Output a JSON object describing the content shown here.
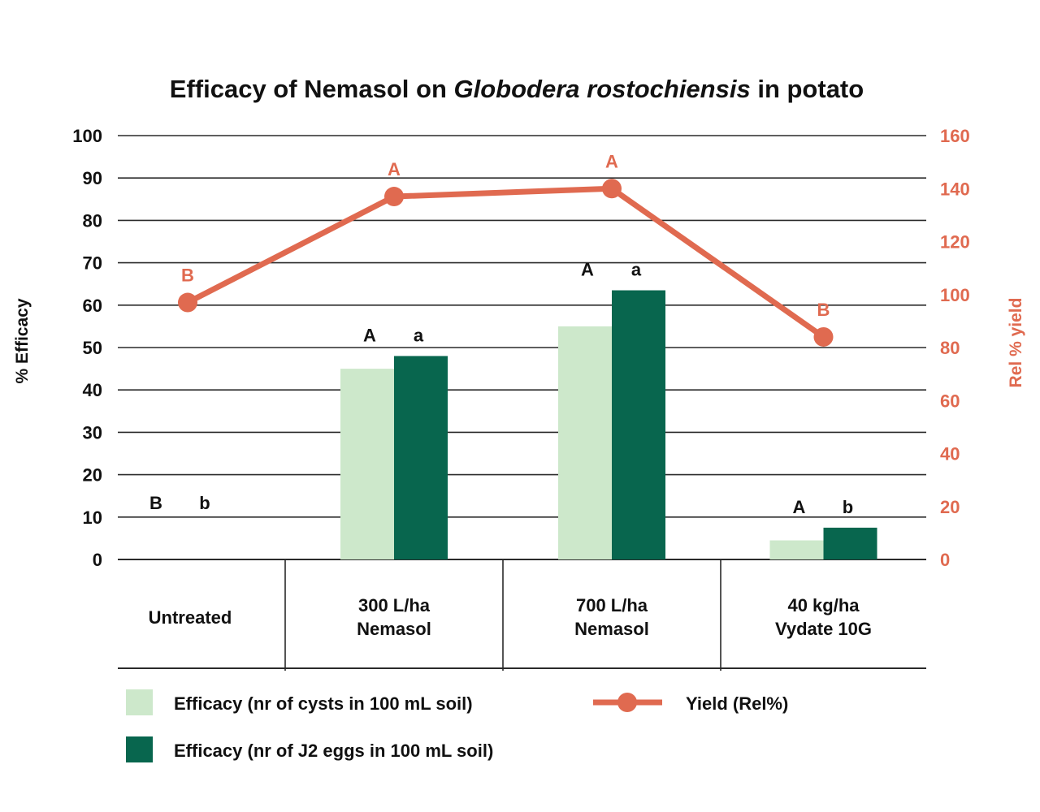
{
  "chart_data": {
    "type": "bar+line",
    "title_parts": [
      {
        "text": "Efficacy of Nemasol on ",
        "italic": false
      },
      {
        "text": "Globodera rostochiensis",
        "italic": true
      },
      {
        "text": " in potato",
        "italic": false
      }
    ],
    "title": "Efficacy of Nemasol on Globodera rostochiensis in potato",
    "ylabel": "% Efficacy",
    "y2label": "Rel % yield",
    "ylim": [
      0,
      100
    ],
    "yticks": [
      0,
      10,
      20,
      30,
      40,
      50,
      60,
      70,
      80,
      90,
      100
    ],
    "y2lim": [
      0,
      160
    ],
    "y2ticks": [
      0,
      20,
      40,
      60,
      80,
      100,
      120,
      140,
      160
    ],
    "grid": true,
    "categories": [
      [
        "Untreated"
      ],
      [
        "300 L/ha",
        "Nemasol"
      ],
      [
        "700 L/ha",
        "Nemasol"
      ],
      [
        "40 kg/ha",
        "Vydate 10G"
      ]
    ],
    "series": [
      {
        "name": "Efficacy (nr of cysts in 100 mL soil)",
        "type": "bar",
        "axis": "left",
        "color": "#CDE8CB",
        "values": [
          0,
          45,
          55,
          4.5
        ],
        "significance": [
          "B",
          "A",
          "A",
          "A"
        ]
      },
      {
        "name": "Efficacy (nr of J2 eggs in 100 mL soil)",
        "type": "bar",
        "axis": "left",
        "color": "#08664E",
        "values": [
          0,
          48,
          63.5,
          7.5
        ],
        "significance": [
          "b",
          "a",
          "a",
          "b"
        ]
      },
      {
        "name": "Yield (Rel%)",
        "type": "line",
        "axis": "right",
        "color": "#E06A50",
        "values": [
          97,
          137,
          140,
          84
        ],
        "significance": [
          "B",
          "A",
          "A",
          "B"
        ]
      }
    ],
    "legend_placement": "bottom"
  }
}
